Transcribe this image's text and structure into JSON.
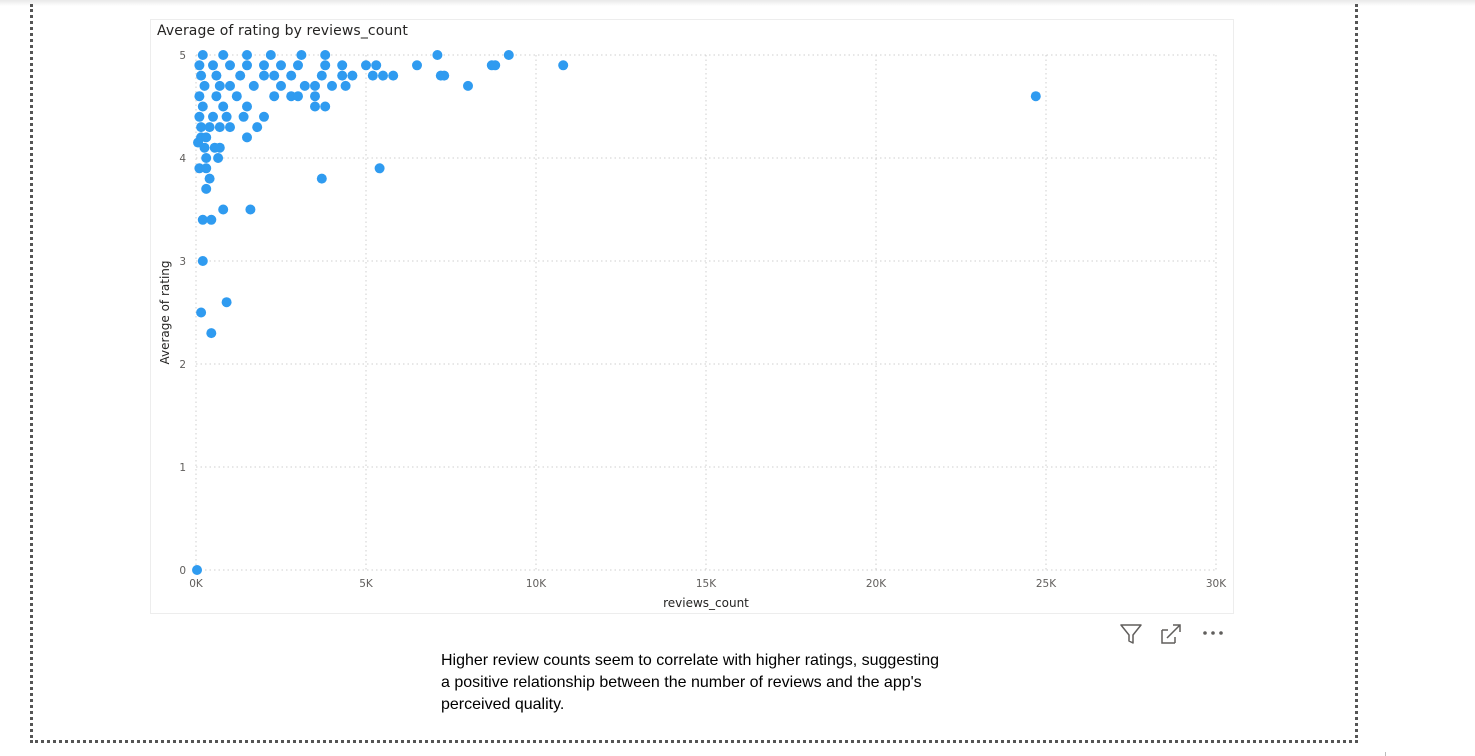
{
  "visual": {
    "title": "Average of rating by reviews_count"
  },
  "caption": "Higher review counts seem to correlate with higher ratings, suggesting a positive relationship between the number of reviews and the app's perceived quality.",
  "icons": [
    "filter-icon",
    "focus-mode-icon",
    "more-options-icon"
  ],
  "colors": {
    "series": "#2f9bf0",
    "grid": "#cfcfcf",
    "text": "#605e5c"
  },
  "chart_data": {
    "type": "scatter",
    "title": "Average of rating by reviews_count",
    "xlabel": "reviews_count",
    "ylabel": "Average of rating",
    "xlim": [
      0,
      30000
    ],
    "ylim": [
      0,
      5
    ],
    "x_ticks": [
      0,
      5000,
      10000,
      15000,
      20000,
      25000,
      30000
    ],
    "x_tick_labels": [
      "0K",
      "5K",
      "10K",
      "15K",
      "20K",
      "25K",
      "30K"
    ],
    "y_ticks": [
      0,
      1,
      2,
      3,
      4,
      5
    ],
    "y_tick_labels": [
      "0",
      "1",
      "2",
      "3",
      "4",
      "5"
    ],
    "grid": true,
    "legend": "none",
    "points": [
      {
        "x": 30,
        "y": 0
      },
      {
        "x": 150,
        "y": 2.5
      },
      {
        "x": 450,
        "y": 2.3
      },
      {
        "x": 900,
        "y": 2.6
      },
      {
        "x": 200,
        "y": 3.0
      },
      {
        "x": 200,
        "y": 3.4
      },
      {
        "x": 450,
        "y": 3.4
      },
      {
        "x": 800,
        "y": 3.5
      },
      {
        "x": 1600,
        "y": 3.5
      },
      {
        "x": 300,
        "y": 3.7
      },
      {
        "x": 400,
        "y": 3.8
      },
      {
        "x": 3700,
        "y": 3.8
      },
      {
        "x": 5400,
        "y": 3.9
      },
      {
        "x": 100,
        "y": 3.9
      },
      {
        "x": 300,
        "y": 3.9
      },
      {
        "x": 300,
        "y": 4.0
      },
      {
        "x": 650,
        "y": 4.0
      },
      {
        "x": 250,
        "y": 4.1
      },
      {
        "x": 550,
        "y": 4.1
      },
      {
        "x": 700,
        "y": 4.1
      },
      {
        "x": 60,
        "y": 4.15
      },
      {
        "x": 150,
        "y": 4.2
      },
      {
        "x": 300,
        "y": 4.2
      },
      {
        "x": 1500,
        "y": 4.2
      },
      {
        "x": 150,
        "y": 4.3
      },
      {
        "x": 400,
        "y": 4.3
      },
      {
        "x": 700,
        "y": 4.3
      },
      {
        "x": 1000,
        "y": 4.3
      },
      {
        "x": 1800,
        "y": 4.3
      },
      {
        "x": 100,
        "y": 4.4
      },
      {
        "x": 500,
        "y": 4.4
      },
      {
        "x": 900,
        "y": 4.4
      },
      {
        "x": 1400,
        "y": 4.4
      },
      {
        "x": 2000,
        "y": 4.4
      },
      {
        "x": 200,
        "y": 4.5
      },
      {
        "x": 800,
        "y": 4.5
      },
      {
        "x": 1500,
        "y": 4.5
      },
      {
        "x": 3500,
        "y": 4.5
      },
      {
        "x": 3800,
        "y": 4.5
      },
      {
        "x": 100,
        "y": 4.6
      },
      {
        "x": 600,
        "y": 4.6
      },
      {
        "x": 1200,
        "y": 4.6
      },
      {
        "x": 2300,
        "y": 4.6
      },
      {
        "x": 2800,
        "y": 4.6
      },
      {
        "x": 3000,
        "y": 4.6
      },
      {
        "x": 3500,
        "y": 4.6
      },
      {
        "x": 24700,
        "y": 4.6
      },
      {
        "x": 250,
        "y": 4.7
      },
      {
        "x": 700,
        "y": 4.7
      },
      {
        "x": 1000,
        "y": 4.7
      },
      {
        "x": 1700,
        "y": 4.7
      },
      {
        "x": 2500,
        "y": 4.7
      },
      {
        "x": 3200,
        "y": 4.7
      },
      {
        "x": 3500,
        "y": 4.7
      },
      {
        "x": 4000,
        "y": 4.7
      },
      {
        "x": 4400,
        "y": 4.7
      },
      {
        "x": 8000,
        "y": 4.7
      },
      {
        "x": 150,
        "y": 4.8
      },
      {
        "x": 600,
        "y": 4.8
      },
      {
        "x": 1300,
        "y": 4.8
      },
      {
        "x": 2000,
        "y": 4.8
      },
      {
        "x": 2300,
        "y": 4.8
      },
      {
        "x": 2800,
        "y": 4.8
      },
      {
        "x": 3700,
        "y": 4.8
      },
      {
        "x": 4300,
        "y": 4.8
      },
      {
        "x": 4600,
        "y": 4.8
      },
      {
        "x": 5200,
        "y": 4.8
      },
      {
        "x": 5500,
        "y": 4.8
      },
      {
        "x": 5800,
        "y": 4.8
      },
      {
        "x": 7200,
        "y": 4.8
      },
      {
        "x": 7300,
        "y": 4.8
      },
      {
        "x": 100,
        "y": 4.9
      },
      {
        "x": 500,
        "y": 4.9
      },
      {
        "x": 1000,
        "y": 4.9
      },
      {
        "x": 1500,
        "y": 4.9
      },
      {
        "x": 2000,
        "y": 4.9
      },
      {
        "x": 2500,
        "y": 4.9
      },
      {
        "x": 3000,
        "y": 4.9
      },
      {
        "x": 3800,
        "y": 4.9
      },
      {
        "x": 4300,
        "y": 4.9
      },
      {
        "x": 5000,
        "y": 4.9
      },
      {
        "x": 5300,
        "y": 4.9
      },
      {
        "x": 6500,
        "y": 4.9
      },
      {
        "x": 8700,
        "y": 4.9
      },
      {
        "x": 8800,
        "y": 4.9
      },
      {
        "x": 10800,
        "y": 4.9
      },
      {
        "x": 200,
        "y": 5.0
      },
      {
        "x": 800,
        "y": 5.0
      },
      {
        "x": 1500,
        "y": 5.0
      },
      {
        "x": 2200,
        "y": 5.0
      },
      {
        "x": 3100,
        "y": 5.0
      },
      {
        "x": 3800,
        "y": 5.0
      },
      {
        "x": 7100,
        "y": 5.0
      },
      {
        "x": 9200,
        "y": 5.0
      }
    ]
  }
}
